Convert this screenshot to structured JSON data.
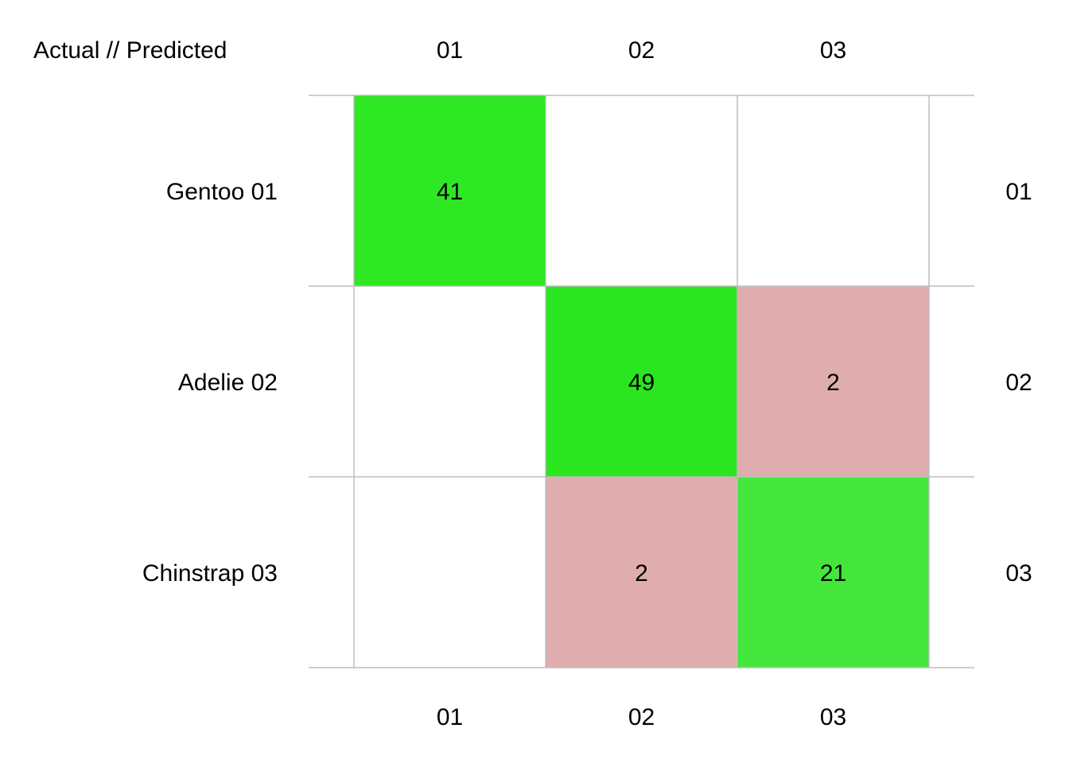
{
  "chart_data": {
    "type": "heatmap",
    "title": "Actual // Predicted",
    "row_labels": [
      "Gentoo 01",
      "Adelie 02",
      "Chinstrap 03"
    ],
    "row_labels_right": [
      "01",
      "02",
      "03"
    ],
    "col_labels_top": [
      "01",
      "02",
      "03"
    ],
    "col_labels_bottom": [
      "01",
      "02",
      "03"
    ],
    "matrix": [
      [
        41,
        null,
        null
      ],
      [
        null,
        49,
        2
      ],
      [
        null,
        2,
        21
      ]
    ],
    "cell_colors": [
      [
        "#2ee823",
        "#ffffff",
        "#ffffff"
      ],
      [
        "#ffffff",
        "#2ae61f",
        "#dfadae"
      ],
      [
        "#ffffff",
        "#dfadae",
        "#44e63b"
      ]
    ],
    "grid": true,
    "grid_color": "#bdbdbd"
  }
}
